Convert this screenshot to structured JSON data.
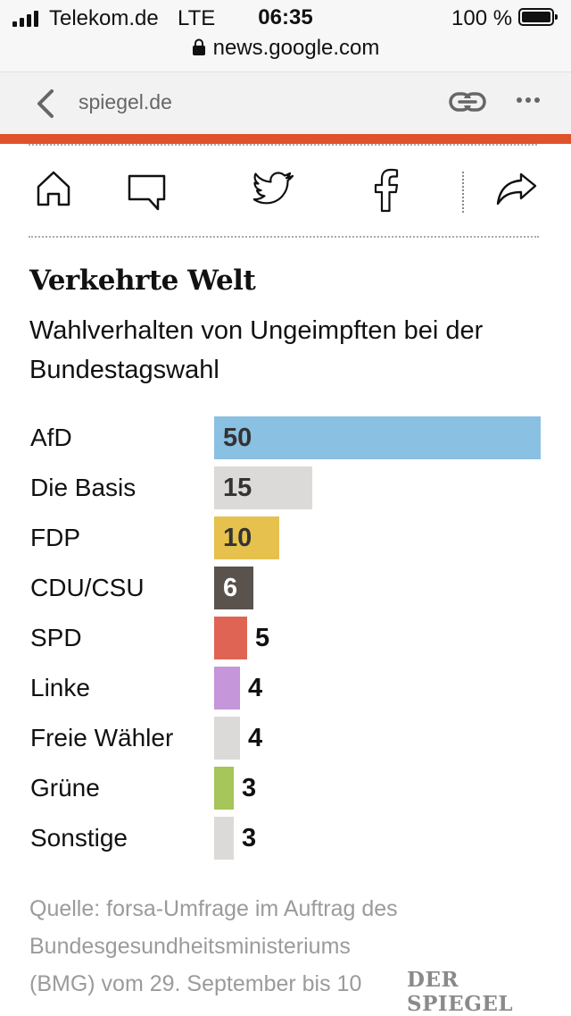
{
  "status_bar": {
    "carrier": "Telekom.de",
    "network": "LTE",
    "time": "06:35",
    "battery": "100 %",
    "url": "news.google.com"
  },
  "browser_bar": {
    "site": "spiegel.de"
  },
  "toolbar": {
    "icons": [
      "home-icon",
      "comment-icon",
      "twitter-icon",
      "facebook-icon",
      "share-icon"
    ]
  },
  "article": {
    "title": "Verkehrte Welt",
    "subtitle": "Wahlverhalten von Ungeimpften bei der Bundestagswahl",
    "source": "Quelle: forsa-Umfrage im Auftrag des Bundesgesundheitsministeriums (BMG) vom 29. September bis 10",
    "logo": "DER SPIEGEL"
  },
  "chart_data": {
    "type": "bar",
    "orientation": "horizontal",
    "title": "Verkehrte Welt",
    "subtitle": "Wahlverhalten von Ungeimpften bei der Bundestagswahl",
    "categories": [
      "AfD",
      "Die Basis",
      "FDP",
      "CDU/CSU",
      "SPD",
      "Linke",
      "Freie Wähler",
      "Grüne",
      "Sonstige"
    ],
    "values": [
      50,
      15,
      10,
      6,
      5,
      4,
      4,
      3,
      3
    ],
    "labels": [
      "50",
      "15",
      "10",
      "6",
      "5",
      "4",
      "4",
      "3",
      "3"
    ],
    "colors": [
      "#8ac0e2",
      "#dcdad8",
      "#e6c14e",
      "#5a524d",
      "#df6453",
      "#c596d9",
      "#dcdad8",
      "#a6c55a",
      "#dcdad8"
    ],
    "label_colors": [
      "#333333",
      "#333333",
      "#333333",
      "#ffffff",
      "#111111",
      "#111111",
      "#111111",
      "#111111",
      "#111111"
    ],
    "xlim": [
      0,
      50
    ],
    "xlabel": "",
    "ylabel": "",
    "grid": false
  }
}
